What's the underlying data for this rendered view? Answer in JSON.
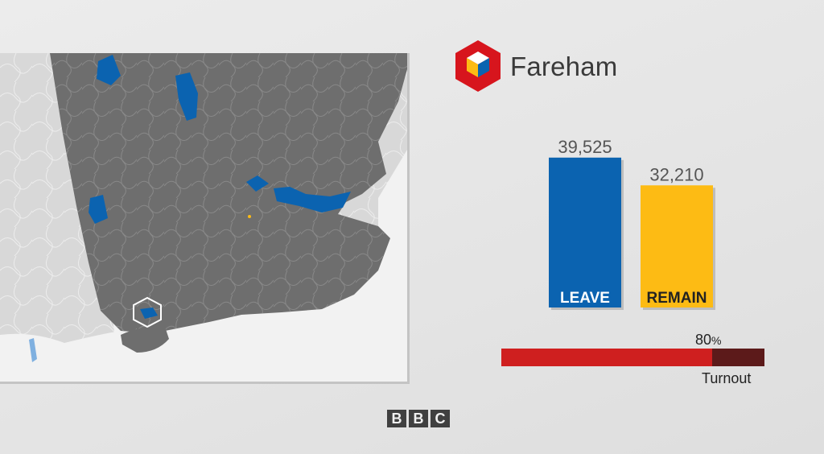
{
  "constituency": "Fareham",
  "colors": {
    "leave": "#0b63b0",
    "remain": "#fdbb14",
    "turnout_fill": "#cf1f1f",
    "turnout_track": "#5c1a1a",
    "map_area": "#6e6e6e",
    "map_outside": "#d8d8d8",
    "sea": "#f2f2f2"
  },
  "chart_data": {
    "type": "bar",
    "categories": [
      "LEAVE",
      "REMAIN"
    ],
    "values": [
      39525,
      32210
    ],
    "value_labels": [
      "39,525",
      "32,210"
    ],
    "colors": [
      "#0b63b0",
      "#fdbb14"
    ],
    "label_colors": [
      "#ffffff",
      "#222222"
    ],
    "ylim": [
      0,
      45000
    ],
    "grid": false,
    "legend": "none"
  },
  "turnout": {
    "value": "80",
    "unit": "%",
    "fraction": 0.8,
    "label": "Turnout"
  },
  "footer": {
    "logo_letters": [
      "B",
      "B",
      "C"
    ]
  },
  "map": {
    "highlight_icon": "hexagon-marker-icon"
  }
}
